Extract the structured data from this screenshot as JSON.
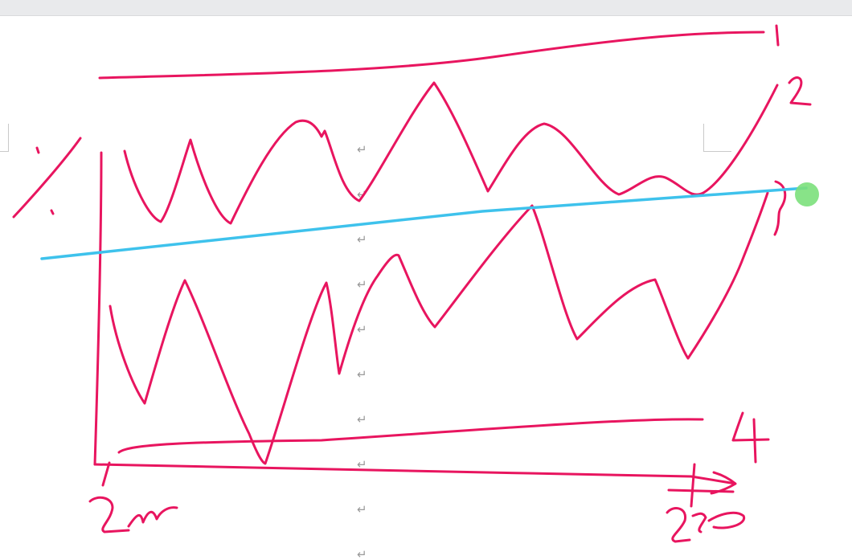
{
  "document": {
    "paragraph_mark": "↵"
  },
  "ink_colors": {
    "pen": "#e8155f",
    "highlighter_line": "#3ec2ec",
    "cursor_dot": "#7be07b"
  },
  "sketch": {
    "line_labels": [
      "1",
      "2",
      "3",
      "4"
    ],
    "x_start_label": "2m",
    "x_end_label": "2020"
  }
}
